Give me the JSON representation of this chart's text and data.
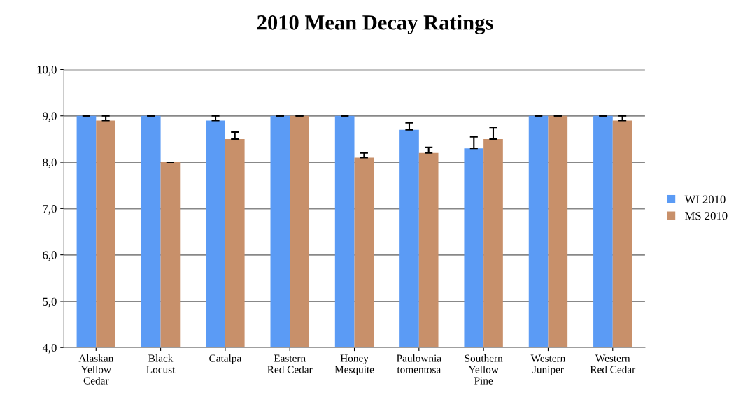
{
  "chart_data": {
    "type": "bar",
    "title": "2010 Mean Decay Ratings",
    "categories": [
      "Alaskan\nYellow\nCedar",
      "Black\nLocust",
      "Catalpa",
      "Eastern\nRed Cedar",
      "Honey\nMesquite",
      "Paulownia\ntomentosa",
      "Southern\nYellow\nPine",
      "Western\nJuniper",
      "Western\nRed Cedar"
    ],
    "series": [
      {
        "name": "WI 2010",
        "color": "#5b9bf5",
        "values": [
          9.0,
          9.0,
          8.9,
          9.0,
          9.0,
          8.7,
          8.3,
          9.0,
          9.0
        ],
        "errors": [
          [
            9.0,
            9.0
          ],
          [
            9.0,
            9.0
          ],
          [
            8.9,
            9.0
          ],
          [
            9.0,
            9.0
          ],
          [
            9.0,
            9.0
          ],
          [
            8.7,
            8.85
          ],
          [
            8.3,
            8.55
          ],
          [
            9.0,
            9.0
          ],
          [
            9.0,
            9.0
          ]
        ]
      },
      {
        "name": "MS 2010",
        "color": "#c8906a",
        "values": [
          8.9,
          8.0,
          8.5,
          9.0,
          8.1,
          8.2,
          8.5,
          9.0,
          8.9
        ],
        "errors": [
          [
            8.9,
            9.0
          ],
          [
            8.0,
            8.0
          ],
          [
            8.5,
            8.65
          ],
          [
            9.0,
            9.0
          ],
          [
            8.1,
            8.2
          ],
          [
            8.2,
            8.32
          ],
          [
            8.5,
            8.75
          ],
          [
            9.0,
            9.0
          ],
          [
            8.9,
            9.0
          ]
        ]
      }
    ],
    "ylim": [
      4.0,
      10.0
    ],
    "yticks": [
      {
        "value": 4.0,
        "label": "4,0"
      },
      {
        "value": 5.0,
        "label": "5,0"
      },
      {
        "value": 6.0,
        "label": "6,0"
      },
      {
        "value": 7.0,
        "label": "7,0"
      },
      {
        "value": 8.0,
        "label": "8,0"
      },
      {
        "value": 9.0,
        "label": "9,0"
      },
      {
        "value": 10.0,
        "label": "10,0"
      }
    ],
    "grid": "y",
    "legend": "right"
  }
}
